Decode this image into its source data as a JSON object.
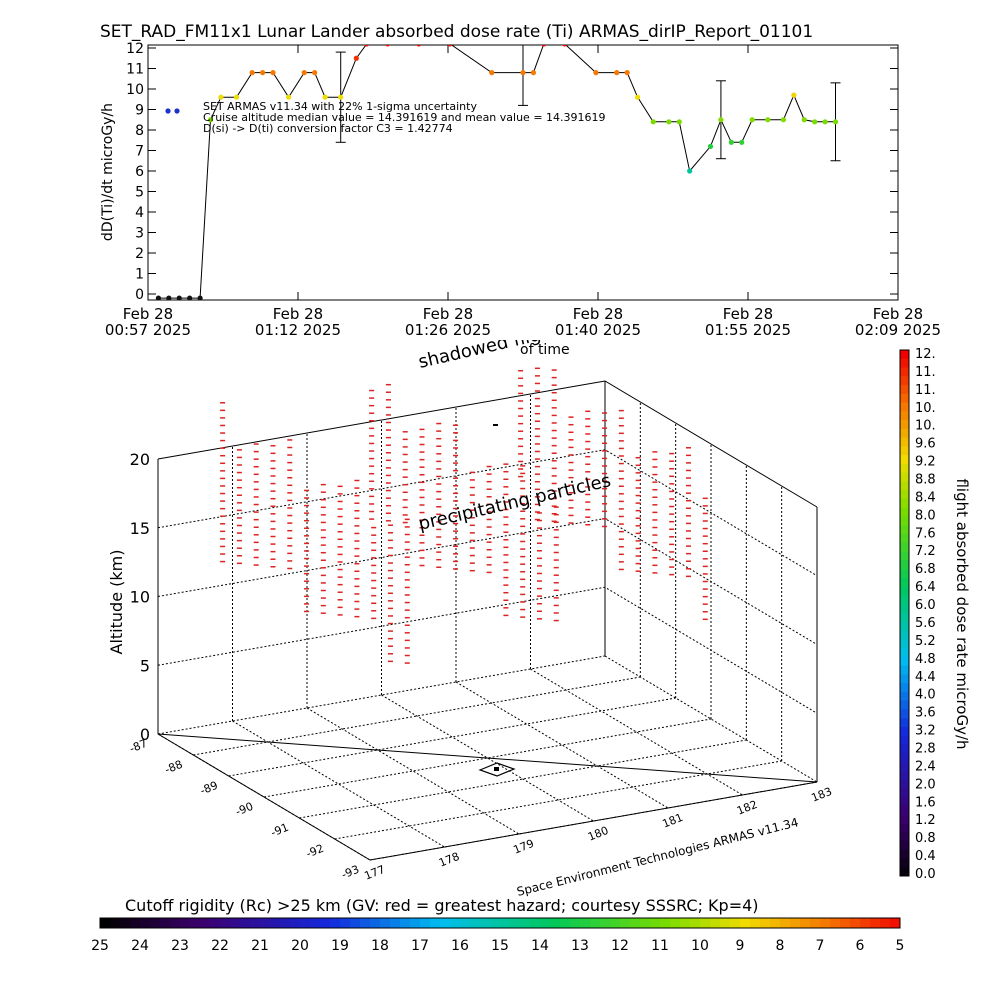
{
  "title": "SET_RAD_FM11x1  Lunar Lander absorbed dose rate (Ti) ARMAS_dirIP_Report_01101",
  "top_chart": {
    "ylabel": "dD(Ti)/dt microGy/h",
    "yticks": [
      "0",
      "1",
      "2",
      "3",
      "4",
      "5",
      "6",
      "7",
      "8",
      "9",
      "10",
      "11",
      "12"
    ],
    "xticks": [
      {
        "line1": "Feb 28",
        "line2": "00:57 2025"
      },
      {
        "line1": "Feb 28",
        "line2": "01:12 2025"
      },
      {
        "line1": "Feb 28",
        "line2": "01:26 2025"
      },
      {
        "line1": "Feb 28",
        "line2": "01:40 2025"
      },
      {
        "line1": "Feb 28",
        "line2": "01:55 2025"
      },
      {
        "line1": "Feb 28",
        "line2": "02:09 2025"
      }
    ],
    "notes": [
      "SET ARMAS v11.34 with 22% 1-sigma uncertainty",
      "Cruise altitude median value = 14.391619 and mean value = 14.391619",
      "D(si) -> D(ti) conversion factor C3 = 1.42774"
    ],
    "legend_marker_color": "#1a33cc"
  },
  "chart_data": [
    {
      "type": "line",
      "title": "SET_RAD_FM11x1  Lunar Lander absorbed dose rate (Ti) ARMAS_dirIP_Report_01101",
      "ylabel": "dD(Ti)/dt microGy/h",
      "ylim": [
        0,
        12
      ],
      "x_unit": "minutes after Feb 28 00:57 2025",
      "xlim": [
        0,
        72
      ],
      "x": [
        1.0,
        2.0,
        3.0,
        4.0,
        5.0,
        6.0,
        7.0,
        8.5,
        10.0,
        11.0,
        12.0,
        13.5,
        15.0,
        16.0,
        17.0,
        18.5,
        20.0,
        21.0,
        23.0,
        26.0,
        29.0,
        33.0,
        36.0,
        37.0,
        38.0,
        40.0,
        43.0,
        45.0,
        46.0,
        47.0,
        48.5,
        50.0,
        51.0,
        52.0,
        54.0,
        55.0,
        56.0,
        57.0,
        58.0,
        59.5,
        61.0,
        62.0,
        63.0,
        64.0,
        65.0,
        66.0
      ],
      "values": [
        -0.2,
        -0.2,
        -0.2,
        -0.2,
        -0.2,
        8.5,
        9.6,
        9.6,
        10.8,
        10.8,
        10.8,
        9.6,
        10.8,
        10.8,
        9.6,
        9.6,
        11.5,
        12.2,
        12.2,
        12.2,
        12.2,
        10.8,
        10.8,
        10.8,
        12.2,
        12.2,
        10.8,
        10.8,
        10.8,
        9.6,
        8.4,
        8.4,
        8.4,
        6.0,
        7.2,
        8.5,
        7.4,
        7.4,
        8.5,
        8.5,
        8.5,
        9.7,
        8.5,
        8.4,
        8.4,
        8.4
      ],
      "error_bars": [
        {
          "x": 18.5,
          "low": 7.4,
          "high": 11.8
        },
        {
          "x": 36.0,
          "low": 9.2,
          "high": 12.4
        },
        {
          "x": 55.0,
          "low": 6.6,
          "high": 10.4
        },
        {
          "x": 66.0,
          "low": 6.5,
          "high": 10.3
        }
      ],
      "color_scale": "dose rate microGy/h"
    },
    {
      "type": "scatter",
      "title": "shadowed flightpath",
      "subtitle": "of time",
      "annotation": "precipitating particles",
      "zlabel": "Altitude (km)",
      "zlim": [
        0,
        23
      ],
      "zticks": [
        "0",
        "5",
        "10",
        "15",
        "20"
      ],
      "lat_ticks": [
        "-87",
        "-88",
        "-89",
        "-90",
        "-91",
        "-92",
        "-93"
      ],
      "lon_ticks": [
        "177",
        "178",
        "179",
        "180",
        "181",
        "182",
        "183"
      ],
      "lat_range": [
        -93,
        -87
      ],
      "lon_range": [
        177,
        183
      ],
      "credit": "Space Environment Technologies ARMAS v11.34",
      "marker_color": "#dd2222",
      "column_altitude_range_km": [
        12,
        24
      ]
    }
  ],
  "colorbar_right": {
    "label": "flight absorbed dose rate microGy/h",
    "labels": [
      "12.",
      "11.",
      "11.",
      "10.",
      "10.",
      "9.6",
      "9.2",
      "8.8",
      "8.4",
      "8.0",
      "7.6",
      "7.2",
      "6.8",
      "6.4",
      "6.0",
      "5.6",
      "5.2",
      "4.8",
      "4.4",
      "4.0",
      "3.6",
      "3.2",
      "2.8",
      "2.4",
      "2.0",
      "1.6",
      "1.2",
      "0.8",
      "0.4",
      "0.0"
    ]
  },
  "colorbar_bottom": {
    "label": "Cutoff rigidity (Rc) >25 km (GV: red = greatest hazard; courtesy SSSRC; Kp=4)",
    "labels": [
      "25",
      "24",
      "23",
      "22",
      "21",
      "20",
      "19",
      "18",
      "17",
      "16",
      "15",
      "14",
      "13",
      "12",
      "11",
      "10",
      "9",
      "8",
      "7",
      "6",
      "5"
    ]
  }
}
